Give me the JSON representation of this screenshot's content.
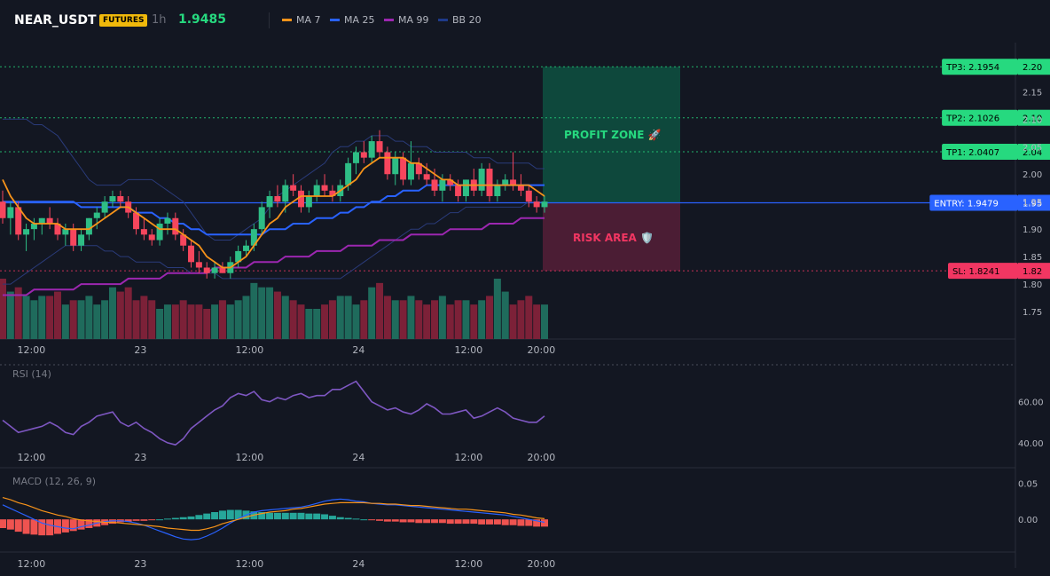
{
  "header": {
    "symbol": "NEAR_USDT",
    "badge": "FUTURES",
    "timeframe": "1h",
    "price": "1.9485",
    "legend": [
      {
        "label": "MA 7",
        "color": "#f7931a"
      },
      {
        "label": "MA 25",
        "color": "#2962ff"
      },
      {
        "label": "MA 99",
        "color": "#9c27b0"
      },
      {
        "label": "BB 20",
        "color": "#1e3a8a"
      }
    ]
  },
  "chart_data": [
    {
      "type": "candlestick",
      "ylim": [
        1.7,
        2.22
      ],
      "y_ticks": [
        "2.15",
        "2.10",
        "2.05",
        "2.00",
        "1.95",
        "1.90",
        "1.85",
        "1.80",
        "1.75"
      ],
      "x_ticks": [
        "12:00",
        "23",
        "12:00",
        "24",
        "12:00",
        "20:00"
      ],
      "levels": [
        {
          "label": "TP3: 2.1954",
          "axis_label": "2.20",
          "value": 2.1954,
          "color": "#26d97f"
        },
        {
          "label": "TP2: 2.1026",
          "axis_label": "2.10",
          "value": 2.1026,
          "color": "#26d97f"
        },
        {
          "label": "TP1: 2.0407",
          "axis_label": "2.04",
          "value": 2.0407,
          "color": "#26d97f"
        },
        {
          "label": "ENTRY: 1.9479",
          "axis_label": "1.95",
          "value": 1.9479,
          "color": "#2962ff"
        },
        {
          "label": "SL: 1.8241",
          "axis_label": "1.82",
          "value": 1.8241,
          "color": "#f23662"
        }
      ],
      "zones": {
        "profit": "PROFIT ZONE 🚀",
        "risk": "RISK AREA 🛡️"
      },
      "candles": [
        [
          1.95,
          1.97,
          1.91,
          1.92
        ],
        [
          1.92,
          1.95,
          1.89,
          1.94
        ],
        [
          1.94,
          1.95,
          1.88,
          1.89
        ],
        [
          1.89,
          1.91,
          1.86,
          1.9
        ],
        [
          1.9,
          1.92,
          1.88,
          1.91
        ],
        [
          1.91,
          1.92,
          1.89,
          1.92
        ],
        [
          1.92,
          1.94,
          1.9,
          1.91
        ],
        [
          1.91,
          1.92,
          1.88,
          1.89
        ],
        [
          1.89,
          1.91,
          1.87,
          1.9
        ],
        [
          1.9,
          1.91,
          1.86,
          1.87
        ],
        [
          1.87,
          1.9,
          1.86,
          1.89
        ],
        [
          1.89,
          1.92,
          1.88,
          1.92
        ],
        [
          1.92,
          1.94,
          1.9,
          1.93
        ],
        [
          1.93,
          1.96,
          1.92,
          1.95
        ],
        [
          1.95,
          1.97,
          1.94,
          1.96
        ],
        [
          1.96,
          1.97,
          1.94,
          1.95
        ],
        [
          1.95,
          1.96,
          1.92,
          1.93
        ],
        [
          1.93,
          1.94,
          1.89,
          1.9
        ],
        [
          1.9,
          1.92,
          1.88,
          1.89
        ],
        [
          1.89,
          1.9,
          1.87,
          1.88
        ],
        [
          1.88,
          1.92,
          1.87,
          1.91
        ],
        [
          1.91,
          1.93,
          1.89,
          1.92
        ],
        [
          1.92,
          1.93,
          1.88,
          1.89
        ],
        [
          1.89,
          1.9,
          1.86,
          1.87
        ],
        [
          1.87,
          1.88,
          1.83,
          1.84
        ],
        [
          1.84,
          1.86,
          1.82,
          1.83
        ],
        [
          1.83,
          1.84,
          1.81,
          1.82
        ],
        [
          1.82,
          1.84,
          1.81,
          1.83
        ],
        [
          1.83,
          1.84,
          1.82,
          1.82
        ],
        [
          1.82,
          1.85,
          1.81,
          1.84
        ],
        [
          1.84,
          1.87,
          1.83,
          1.86
        ],
        [
          1.86,
          1.88,
          1.85,
          1.87
        ],
        [
          1.87,
          1.91,
          1.86,
          1.9
        ],
        [
          1.9,
          1.95,
          1.89,
          1.94
        ],
        [
          1.94,
          1.97,
          1.92,
          1.96
        ],
        [
          1.96,
          1.98,
          1.94,
          1.95
        ],
        [
          1.95,
          1.99,
          1.93,
          1.98
        ],
        [
          1.98,
          2.0,
          1.96,
          1.97
        ],
        [
          1.97,
          1.98,
          1.93,
          1.94
        ],
        [
          1.94,
          1.97,
          1.93,
          1.96
        ],
        [
          1.96,
          1.99,
          1.95,
          1.98
        ],
        [
          1.98,
          2.0,
          1.96,
          1.97
        ],
        [
          1.97,
          1.98,
          1.95,
          1.96
        ],
        [
          1.96,
          1.99,
          1.95,
          1.98
        ],
        [
          1.98,
          2.03,
          1.97,
          2.02
        ],
        [
          2.02,
          2.05,
          2.0,
          2.04
        ],
        [
          2.04,
          2.06,
          2.02,
          2.03
        ],
        [
          2.03,
          2.07,
          2.02,
          2.06
        ],
        [
          2.06,
          2.08,
          2.03,
          2.04
        ],
        [
          2.04,
          2.05,
          1.99,
          2.0
        ],
        [
          2.0,
          2.04,
          1.98,
          2.03
        ],
        [
          2.03,
          2.04,
          1.98,
          1.99
        ],
        [
          1.99,
          2.06,
          1.98,
          2.02
        ],
        [
          2.02,
          2.03,
          1.99,
          2.0
        ],
        [
          2.0,
          2.02,
          1.98,
          1.99
        ],
        [
          1.99,
          2.01,
          1.96,
          1.97
        ],
        [
          1.97,
          2.0,
          1.95,
          1.99
        ],
        [
          1.99,
          2.0,
          1.97,
          1.98
        ],
        [
          1.98,
          1.99,
          1.95,
          1.96
        ],
        [
          1.96,
          1.99,
          1.95,
          1.99
        ],
        [
          1.99,
          2.01,
          1.96,
          1.97
        ],
        [
          1.97,
          2.02,
          1.96,
          2.01
        ],
        [
          2.01,
          2.02,
          1.95,
          1.96
        ],
        [
          1.96,
          1.99,
          1.95,
          1.98
        ],
        [
          1.98,
          2.0,
          1.97,
          1.99
        ],
        [
          1.99,
          2.04,
          1.97,
          1.98
        ],
        [
          1.98,
          2.0,
          1.96,
          1.97
        ],
        [
          1.97,
          1.98,
          1.94,
          1.95
        ],
        [
          1.95,
          1.96,
          1.93,
          1.94
        ],
        [
          1.94,
          1.96,
          1.93,
          1.95
        ]
      ],
      "ma7": [
        1.99,
        1.96,
        1.94,
        1.92,
        1.91,
        1.91,
        1.91,
        1.91,
        1.9,
        1.9,
        1.9,
        1.9,
        1.91,
        1.92,
        1.93,
        1.94,
        1.94,
        1.93,
        1.92,
        1.91,
        1.9,
        1.9,
        1.9,
        1.89,
        1.88,
        1.87,
        1.85,
        1.84,
        1.83,
        1.83,
        1.84,
        1.85,
        1.87,
        1.89,
        1.91,
        1.92,
        1.94,
        1.95,
        1.96,
        1.96,
        1.96,
        1.96,
        1.96,
        1.97,
        1.98,
        1.99,
        2.01,
        2.02,
        2.03,
        2.03,
        2.03,
        2.03,
        2.02,
        2.02,
        2.01,
        2.0,
        1.99,
        1.99,
        1.98,
        1.98,
        1.98,
        1.98,
        1.98,
        1.98,
        1.98,
        1.98,
        1.98,
        1.98,
        1.97,
        1.96
      ],
      "ma25": [
        1.95,
        1.95,
        1.95,
        1.95,
        1.95,
        1.95,
        1.95,
        1.95,
        1.95,
        1.95,
        1.94,
        1.94,
        1.94,
        1.94,
        1.94,
        1.94,
        1.94,
        1.93,
        1.93,
        1.93,
        1.92,
        1.92,
        1.91,
        1.91,
        1.9,
        1.9,
        1.89,
        1.89,
        1.89,
        1.89,
        1.89,
        1.89,
        1.89,
        1.89,
        1.9,
        1.9,
        1.9,
        1.91,
        1.91,
        1.91,
        1.92,
        1.92,
        1.92,
        1.93,
        1.93,
        1.94,
        1.94,
        1.95,
        1.95,
        1.96,
        1.96,
        1.97,
        1.97,
        1.97,
        1.98,
        1.98,
        1.98,
        1.98,
        1.98,
        1.98,
        1.98,
        1.98,
        1.98,
        1.98,
        1.98,
        1.98,
        1.98,
        1.98,
        1.98,
        1.98
      ],
      "ma99": [
        1.78,
        1.78,
        1.78,
        1.78,
        1.79,
        1.79,
        1.79,
        1.79,
        1.79,
        1.79,
        1.8,
        1.8,
        1.8,
        1.8,
        1.8,
        1.8,
        1.81,
        1.81,
        1.81,
        1.81,
        1.81,
        1.82,
        1.82,
        1.82,
        1.82,
        1.82,
        1.82,
        1.83,
        1.83,
        1.83,
        1.83,
        1.83,
        1.84,
        1.84,
        1.84,
        1.84,
        1.85,
        1.85,
        1.85,
        1.85,
        1.86,
        1.86,
        1.86,
        1.86,
        1.87,
        1.87,
        1.87,
        1.87,
        1.88,
        1.88,
        1.88,
        1.88,
        1.89,
        1.89,
        1.89,
        1.89,
        1.89,
        1.9,
        1.9,
        1.9,
        1.9,
        1.9,
        1.91,
        1.91,
        1.91,
        1.91,
        1.92,
        1.92,
        1.92,
        1.92
      ],
      "bb_upper": [
        2.1,
        2.1,
        2.1,
        2.1,
        2.09,
        2.09,
        2.08,
        2.07,
        2.05,
        2.03,
        2.01,
        1.99,
        1.98,
        1.98,
        1.98,
        1.98,
        1.99,
        1.99,
        1.99,
        1.99,
        1.98,
        1.97,
        1.96,
        1.95,
        1.93,
        1.91,
        1.89,
        1.88,
        1.88,
        1.88,
        1.89,
        1.9,
        1.91,
        1.92,
        1.94,
        1.96,
        1.97,
        1.98,
        1.99,
        2.0,
        2.01,
        2.02,
        2.04,
        2.05,
        2.05,
        2.06,
        2.06,
        2.07,
        2.07,
        2.07,
        2.06,
        2.06,
        2.05,
        2.05,
        2.05,
        2.04,
        2.04,
        2.04,
        2.04,
        2.04,
        2.03,
        2.03,
        2.03,
        2.02,
        2.02,
        2.02,
        2.02,
        2.02,
        2.01,
        2.01
      ],
      "bb_lower": [
        1.8,
        1.8,
        1.81,
        1.82,
        1.83,
        1.84,
        1.85,
        1.86,
        1.87,
        1.87,
        1.87,
        1.87,
        1.87,
        1.86,
        1.86,
        1.85,
        1.85,
        1.84,
        1.84,
        1.84,
        1.84,
        1.83,
        1.83,
        1.83,
        1.82,
        1.82,
        1.82,
        1.82,
        1.81,
        1.81,
        1.81,
        1.81,
        1.81,
        1.81,
        1.81,
        1.81,
        1.81,
        1.81,
        1.81,
        1.81,
        1.81,
        1.81,
        1.81,
        1.81,
        1.82,
        1.83,
        1.84,
        1.85,
        1.86,
        1.87,
        1.88,
        1.89,
        1.9,
        1.9,
        1.91,
        1.91,
        1.92,
        1.93,
        1.93,
        1.94,
        1.94,
        1.94,
        1.94,
        1.94,
        1.94,
        1.94,
        1.94,
        1.95,
        1.95,
        1.95
      ],
      "volume": [
        14,
        11,
        12,
        10,
        9,
        10,
        10,
        11,
        8,
        9,
        9,
        10,
        8,
        9,
        12,
        11,
        12,
        9,
        10,
        9,
        7,
        8,
        8,
        9,
        8,
        8,
        7,
        8,
        9,
        8,
        9,
        10,
        13,
        12,
        12,
        11,
        10,
        9,
        8,
        7,
        7,
        8,
        9,
        10,
        10,
        8,
        9,
        12,
        13,
        10,
        9,
        9,
        10,
        9,
        8,
        9,
        10,
        8,
        9,
        9,
        8,
        9,
        10,
        14,
        11,
        8,
        9,
        10,
        8,
        8
      ]
    },
    {
      "type": "line",
      "title": "RSI (14)",
      "ylim": [
        30,
        75
      ],
      "y_ticks": [
        "60.00",
        "40.00"
      ],
      "x_ticks": [
        "12:00",
        "23",
        "12:00",
        "24",
        "12:00",
        "20:00"
      ],
      "values": [
        51,
        48,
        45,
        46,
        47,
        48,
        50,
        48,
        45,
        44,
        48,
        50,
        53,
        54,
        55,
        50,
        48,
        50,
        47,
        45,
        42,
        40,
        39,
        42,
        47,
        50,
        53,
        56,
        58,
        62,
        64,
        63,
        65,
        61,
        60,
        62,
        61,
        63,
        64,
        62,
        63,
        63,
        66,
        66,
        68,
        70,
        65,
        60,
        58,
        56,
        57,
        55,
        54,
        56,
        59,
        57,
        54,
        54,
        55,
        56,
        52,
        53,
        55,
        57,
        55,
        52,
        51,
        50,
        50,
        53
      ]
    },
    {
      "type": "macd",
      "title": "MACD (12, 26, 9)",
      "ylim": [
        -0.045,
        0.065
      ],
      "y_ticks": [
        "0.05",
        "0.00"
      ],
      "x_ticks": [
        "12:00",
        "23",
        "12:00",
        "24",
        "12:00",
        "20:00"
      ],
      "macd": [
        0.02,
        0.015,
        0.01,
        0.005,
        0.0,
        -0.005,
        -0.008,
        -0.01,
        -0.012,
        -0.013,
        -0.01,
        -0.008,
        -0.005,
        -0.003,
        -0.002,
        -0.002,
        -0.003,
        -0.005,
        -0.008,
        -0.012,
        -0.016,
        -0.02,
        -0.024,
        -0.027,
        -0.028,
        -0.027,
        -0.023,
        -0.018,
        -0.012,
        -0.005,
        0.001,
        0.006,
        0.01,
        0.012,
        0.013,
        0.014,
        0.015,
        0.016,
        0.017,
        0.019,
        0.022,
        0.025,
        0.027,
        0.028,
        0.027,
        0.025,
        0.024,
        0.022,
        0.021,
        0.02,
        0.02,
        0.019,
        0.018,
        0.017,
        0.016,
        0.015,
        0.014,
        0.013,
        0.012,
        0.011,
        0.01,
        0.009,
        0.008,
        0.007,
        0.006,
        0.004,
        0.002,
        0.0,
        -0.002,
        -0.004
      ],
      "signal": [
        0.03,
        0.027,
        0.023,
        0.02,
        0.016,
        0.012,
        0.009,
        0.006,
        0.004,
        0.001,
        -0.001,
        -0.002,
        -0.003,
        -0.004,
        -0.004,
        -0.005,
        -0.006,
        -0.007,
        -0.008,
        -0.009,
        -0.01,
        -0.012,
        -0.013,
        -0.014,
        -0.015,
        -0.015,
        -0.013,
        -0.01,
        -0.006,
        -0.003,
        0.0,
        0.003,
        0.006,
        0.008,
        0.01,
        0.011,
        0.012,
        0.014,
        0.015,
        0.017,
        0.019,
        0.021,
        0.022,
        0.023,
        0.023,
        0.023,
        0.023,
        0.022,
        0.022,
        0.021,
        0.021,
        0.02,
        0.019,
        0.019,
        0.018,
        0.017,
        0.016,
        0.015,
        0.014,
        0.014,
        0.013,
        0.012,
        0.011,
        0.01,
        0.009,
        0.007,
        0.006,
        0.004,
        0.002,
        0.001
      ],
      "histogram": [
        -0.012,
        -0.014,
        -0.017,
        -0.02,
        -0.021,
        -0.022,
        -0.022,
        -0.02,
        -0.018,
        -0.016,
        -0.014,
        -0.012,
        -0.01,
        -0.008,
        -0.006,
        -0.004,
        -0.003,
        -0.002,
        -0.002,
        -0.001,
        0.0,
        0.001,
        0.002,
        0.003,
        0.004,
        0.006,
        0.008,
        0.01,
        0.012,
        0.013,
        0.013,
        0.012,
        0.011,
        0.01,
        0.009,
        0.009,
        0.009,
        0.009,
        0.009,
        0.008,
        0.008,
        0.007,
        0.005,
        0.003,
        0.002,
        0.001,
        0.0,
        -0.001,
        -0.002,
        -0.003,
        -0.003,
        -0.004,
        -0.004,
        -0.005,
        -0.005,
        -0.005,
        -0.005,
        -0.006,
        -0.006,
        -0.006,
        -0.006,
        -0.007,
        -0.007,
        -0.007,
        -0.008,
        -0.008,
        -0.009,
        -0.009,
        -0.01,
        -0.01
      ]
    }
  ]
}
